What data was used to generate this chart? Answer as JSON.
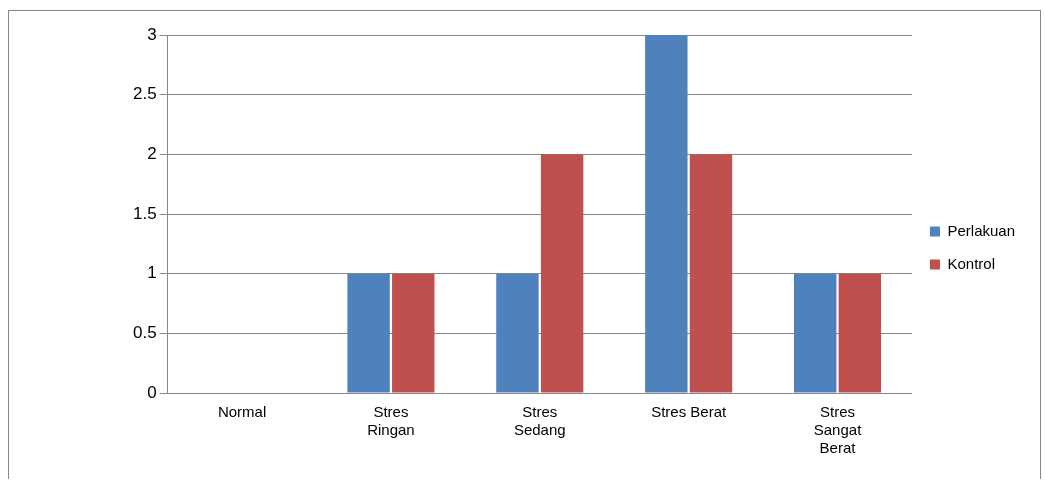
{
  "chart_data": {
    "type": "bar",
    "categories": [
      "Normal",
      "Stres Ringan",
      "Stres Sedang",
      "Stres Berat",
      "Stres Sangat Berat"
    ],
    "series": [
      {
        "name": "Perlakuan",
        "color": "#4f81bd",
        "values": [
          0,
          1,
          1,
          3,
          1
        ]
      },
      {
        "name": "Kontrol",
        "color": "#c0504d",
        "values": [
          0,
          1,
          2,
          2,
          1
        ]
      }
    ],
    "ylim": [
      0,
      3
    ],
    "yticks": [
      0,
      0.5,
      1,
      1.5,
      2,
      2.5,
      3
    ],
    "grid": "y",
    "legend": "right"
  }
}
